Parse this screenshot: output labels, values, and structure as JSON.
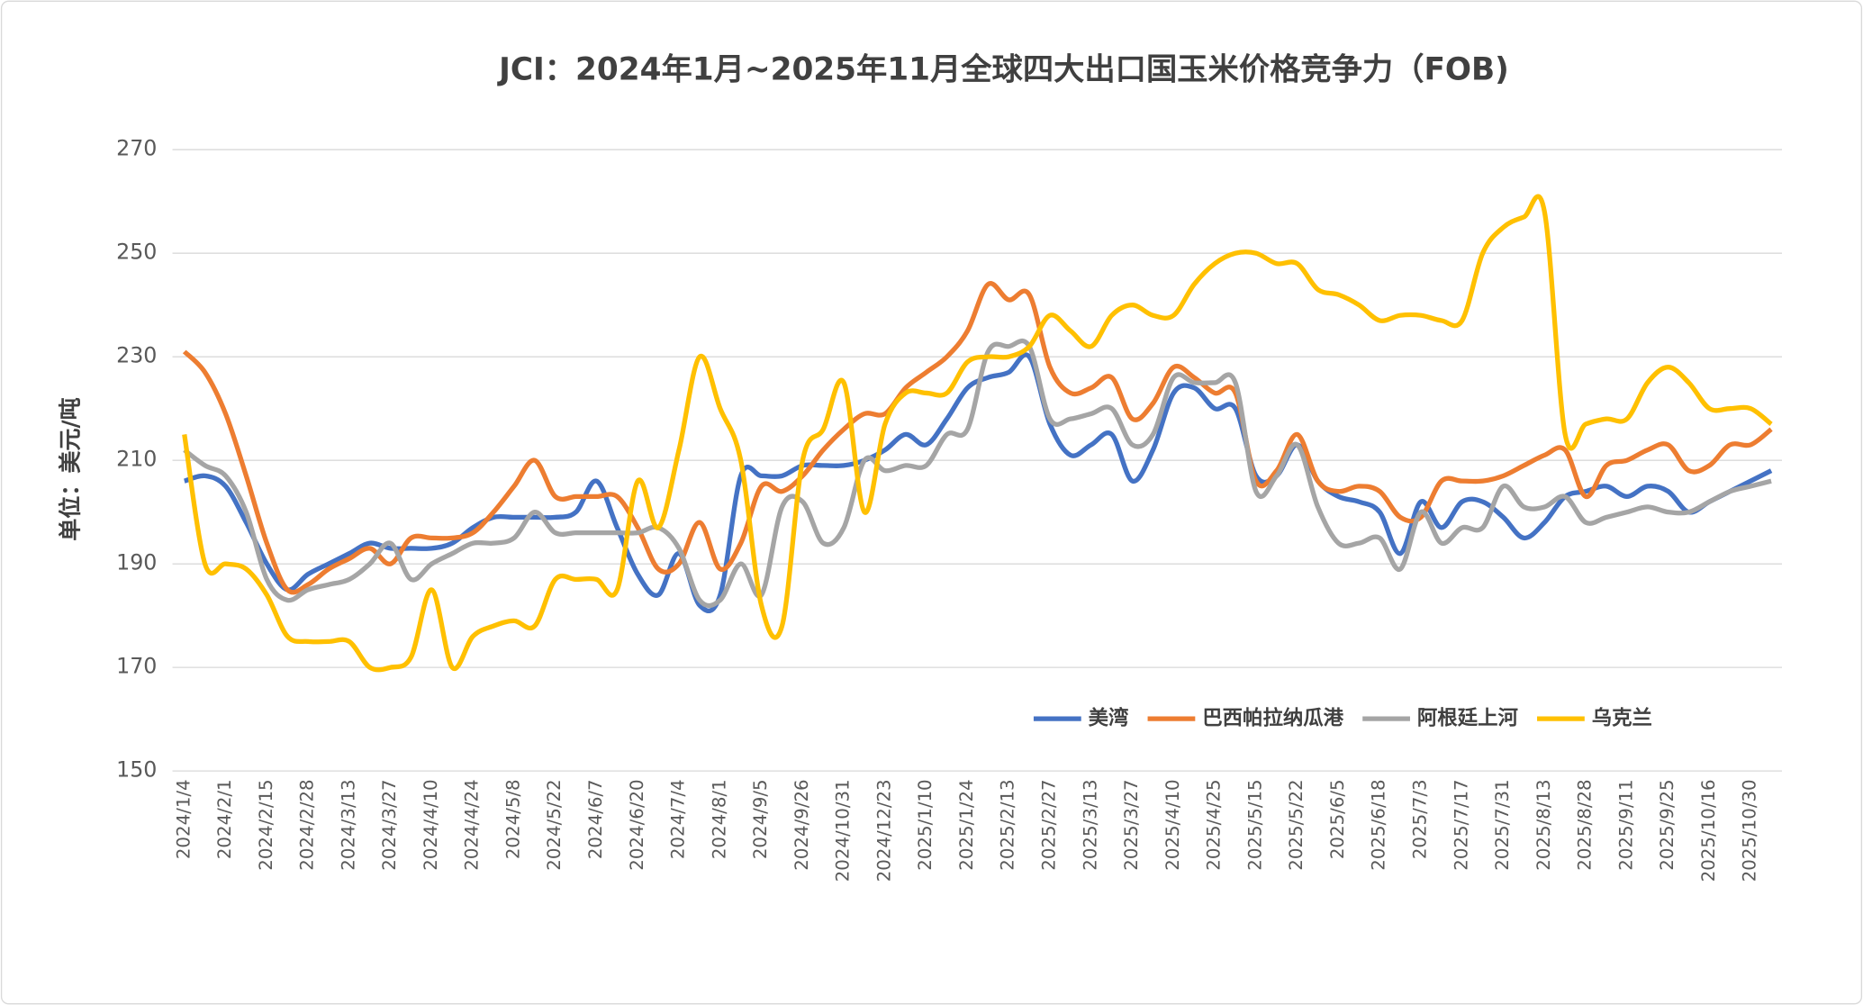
{
  "chart_data": {
    "type": "line",
    "title": "JCI：2024年1月~2025年11月全球四大出口国玉米价格竞争力（FOB)",
    "y_label": "单位：美元/吨",
    "categories": [
      "2024/1/4",
      null,
      "2024/2/1",
      null,
      "2024/2/15",
      null,
      "2024/2/28",
      null,
      "2024/3/13",
      null,
      "2024/3/27",
      null,
      "2024/4/10",
      null,
      "2024/4/24",
      null,
      "2024/5/8",
      null,
      "2024/5/22",
      null,
      "2024/6/7",
      null,
      "2024/6/20",
      null,
      "2024/7/4",
      null,
      "2024/8/1",
      null,
      "2024/9/5",
      null,
      "2024/9/26",
      null,
      "2024/10/31",
      null,
      "2024/12/23",
      null,
      "2025/1/10",
      null,
      "2025/1/24",
      null,
      "2025/2/13",
      null,
      "2025/2/27",
      null,
      "2025/3/13",
      null,
      "2025/3/27",
      null,
      "2025/4/10",
      null,
      "2025/4/25",
      null,
      "2025/5/15",
      null,
      "2025/5/22",
      null,
      "2025/6/5",
      null,
      "2025/6/18",
      null,
      "2025/7/3",
      null,
      "2025/7/17",
      null,
      "2025/7/31",
      null,
      "2025/8/13",
      null,
      "2025/8/28",
      null,
      "2025/9/11",
      null,
      "2025/9/25",
      null,
      "2025/10/16",
      null,
      "2025/10/30",
      null
    ],
    "series": [
      {
        "name": "美湾",
        "color": "#4472c4",
        "values": [
          206,
          207,
          205,
          198,
          190,
          185,
          188,
          190,
          192,
          194,
          193,
          193,
          193,
          194,
          197,
          199,
          199,
          199,
          199,
          200,
          206,
          197,
          188,
          184,
          192,
          182,
          184,
          207,
          207,
          207,
          209,
          209,
          209,
          210,
          212,
          215,
          213,
          218,
          224,
          226,
          227,
          230,
          217,
          211,
          213,
          215,
          206,
          212,
          223,
          224,
          220,
          220,
          207,
          207,
          213,
          206,
          203,
          202,
          200,
          192,
          202,
          197,
          202,
          202,
          199,
          195,
          198,
          203,
          204,
          205,
          203,
          205,
          204,
          200,
          202,
          204,
          206,
          208
        ]
      },
      {
        "name": "巴西帕拉纳瓜港",
        "color": "#ed7d31",
        "values": [
          231,
          227,
          219,
          207,
          194,
          185,
          186,
          189,
          191,
          193,
          190,
          195,
          195,
          195,
          196,
          200,
          205,
          210,
          203,
          203,
          203,
          203,
          197,
          189,
          190,
          198,
          189,
          194,
          205,
          204,
          207,
          212,
          216,
          219,
          219,
          224,
          227,
          230,
          235,
          244,
          241,
          242,
          228,
          223,
          224,
          226,
          218,
          221,
          228,
          226,
          223,
          223,
          206,
          208,
          215,
          206,
          204,
          205,
          204,
          199,
          199,
          206,
          206,
          206,
          207,
          209,
          211,
          212,
          203,
          209,
          210,
          212,
          213,
          208,
          209,
          213,
          213,
          216
        ]
      },
      {
        "name": "阿根廷上河",
        "color": "#a5a5a5",
        "values": [
          212,
          209,
          207,
          200,
          187,
          183,
          185,
          186,
          187,
          190,
          194,
          187,
          190,
          192,
          194,
          194,
          195,
          200,
          196,
          196,
          196,
          196,
          196,
          197,
          193,
          183,
          183,
          190,
          184,
          201,
          202,
          194,
          197,
          210,
          208,
          209,
          209,
          215,
          216,
          231,
          232,
          232,
          218,
          218,
          219,
          220,
          213,
          215,
          226,
          225,
          225,
          225,
          204,
          207,
          213,
          201,
          194,
          194,
          195,
          189,
          200,
          194,
          197,
          197,
          205,
          201,
          201,
          203,
          198,
          199,
          200,
          201,
          200,
          200,
          202,
          204,
          205,
          206
        ]
      },
      {
        "name": "乌克兰",
        "color": "#ffc000",
        "values": [
          215,
          190,
          190,
          189,
          184,
          176,
          175,
          175,
          175,
          170,
          170,
          172,
          185,
          170,
          176,
          178,
          179,
          178,
          187,
          187,
          187,
          185,
          206,
          197,
          212,
          230,
          220,
          210,
          182,
          178,
          210,
          216,
          225,
          200,
          217,
          223,
          223,
          223,
          229,
          230,
          230,
          232,
          238,
          235,
          232,
          238,
          240,
          238,
          238,
          244,
          248,
          250,
          250,
          248,
          248,
          243,
          242,
          240,
          237,
          238,
          238,
          237,
          237,
          250,
          255,
          257,
          258,
          215,
          217,
          218,
          218,
          225,
          228,
          225,
          220,
          220,
          220,
          217
        ]
      }
    ],
    "ylim": [
      150,
      270
    ],
    "yticks": [
      150,
      170,
      190,
      210,
      230,
      250,
      270
    ],
    "grid": true,
    "legend": "bottom-right"
  }
}
